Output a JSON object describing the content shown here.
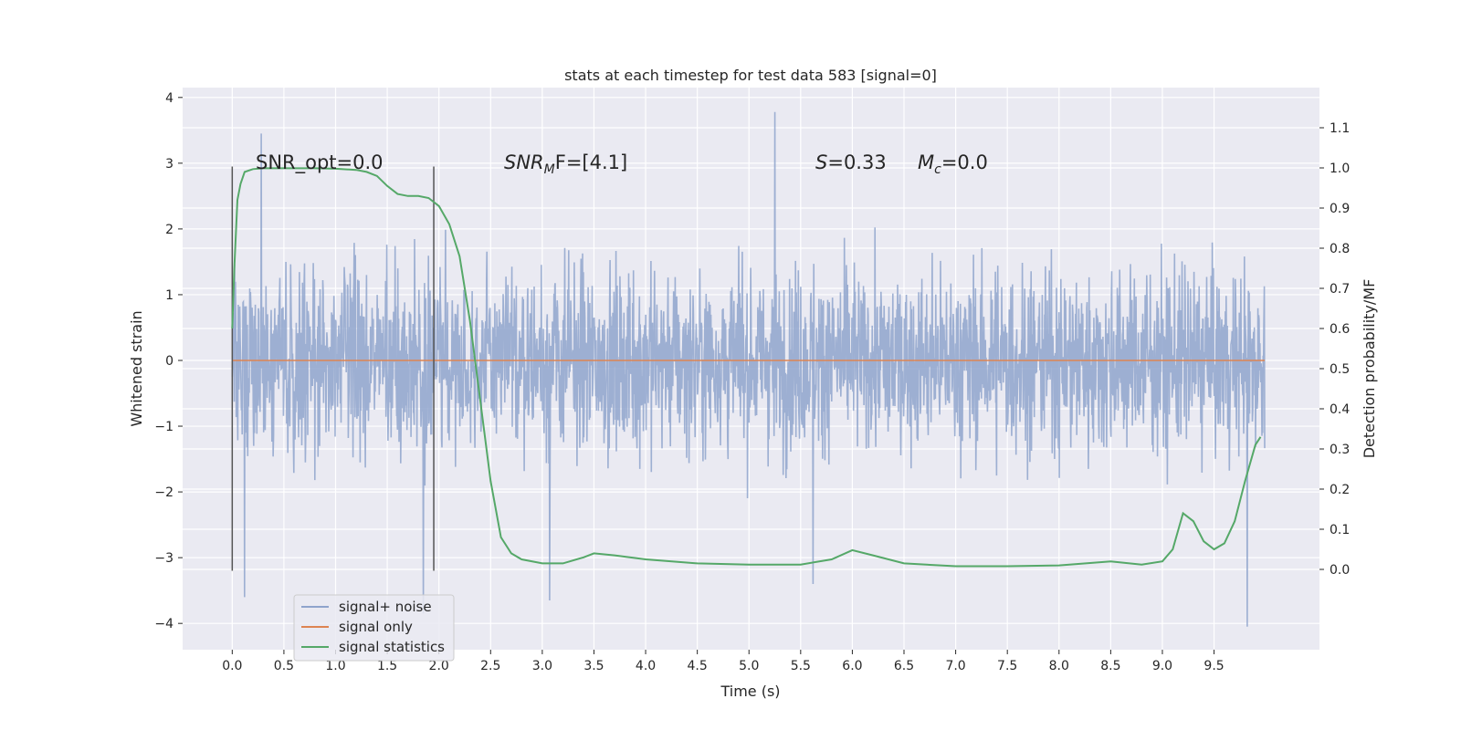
{
  "chart_data": {
    "type": "line",
    "title": "stats at each timestep for test data 583 [signal=0]",
    "xlabel": "Time (s)",
    "ylabel": "Whitened strain",
    "ylabel_right": "Detection probability/MF",
    "xlim": [
      -0.48,
      10.52
    ],
    "ylim": [
      -4.4,
      4.15
    ],
    "ylim_right": [
      -0.2,
      1.2
    ],
    "x_ticks": [
      0.0,
      0.5,
      1.0,
      1.5,
      2.0,
      2.5,
      3.0,
      3.5,
      4.0,
      4.5,
      5.0,
      5.5,
      6.0,
      6.5,
      7.0,
      7.5,
      8.0,
      8.5,
      9.0,
      9.5
    ],
    "x_tick_labels": [
      "0.0",
      "0.5",
      "1.0",
      "1.5",
      "2.0",
      "2.5",
      "3.0",
      "3.5",
      "4.0",
      "4.5",
      "5.0",
      "5.5",
      "6.0",
      "6.5",
      "7.0",
      "7.5",
      "8.0",
      "8.5",
      "9.0",
      "9.5"
    ],
    "y_ticks": [
      -4,
      -3,
      -2,
      -1,
      0,
      1,
      2,
      3,
      4
    ],
    "y_tick_labels": [
      "−4",
      "−3",
      "−2",
      "−1",
      "0",
      "1",
      "2",
      "3",
      "4"
    ],
    "y2_ticks": [
      0.0,
      0.1,
      0.2,
      0.3,
      0.4,
      0.5,
      0.6,
      0.7,
      0.8,
      0.9,
      1.0,
      1.1
    ],
    "y2_tick_labels": [
      "0.0",
      "0.1",
      "0.2",
      "0.3",
      "0.4",
      "0.5",
      "0.6",
      "0.7",
      "0.8",
      "0.9",
      "1.0",
      "1.1"
    ],
    "grid": true,
    "legend_position": "lower-left",
    "colors": {
      "signal_noise": "#8fa4cc",
      "signal_only": "#dd8452",
      "signal_statistics": "#55a868",
      "window_line": "#555555",
      "plot_bg": "#eaeaf2",
      "grid": "#ffffff"
    },
    "series": [
      {
        "name": "signal+ noise",
        "axis": "left",
        "x_range": [
          0.0,
          9.99
        ],
        "peaks": [
          {
            "x": 0.28,
            "y": 3.45
          },
          {
            "x": 0.12,
            "y": -3.6
          },
          {
            "x": 3.07,
            "y": -3.65
          },
          {
            "x": 5.25,
            "y": 3.78
          },
          {
            "x": 9.82,
            "y": -4.05
          },
          {
            "x": 5.62,
            "y": -3.4
          },
          {
            "x": 1.85,
            "y": -3.85
          }
        ],
        "typical_envelope": [
          -2.5,
          2.5
        ]
      },
      {
        "name": "signal only",
        "axis": "left",
        "x": [
          0.0,
          9.99
        ],
        "y": [
          0.0,
          0.0
        ]
      },
      {
        "name": "signal statistics",
        "axis": "right",
        "x": [
          0.0,
          0.02,
          0.05,
          0.08,
          0.12,
          0.2,
          0.3,
          0.5,
          0.8,
          1.0,
          1.2,
          1.3,
          1.4,
          1.5,
          1.6,
          1.7,
          1.8,
          1.9,
          2.0,
          2.1,
          2.2,
          2.3,
          2.4,
          2.5,
          2.6,
          2.7,
          2.8,
          3.0,
          3.2,
          3.4,
          3.5,
          3.7,
          4.0,
          4.5,
          5.0,
          5.5,
          5.8,
          6.0,
          6.2,
          6.5,
          7.0,
          7.5,
          8.0,
          8.5,
          8.8,
          9.0,
          9.1,
          9.2,
          9.3,
          9.4,
          9.5,
          9.6,
          9.7,
          9.8,
          9.9,
          9.95
        ],
        "y": [
          0.6,
          0.75,
          0.92,
          0.96,
          0.99,
          0.997,
          0.999,
          0.999,
          0.999,
          0.998,
          0.995,
          0.99,
          0.98,
          0.955,
          0.935,
          0.93,
          0.93,
          0.925,
          0.905,
          0.86,
          0.78,
          0.62,
          0.42,
          0.22,
          0.08,
          0.04,
          0.025,
          0.015,
          0.015,
          0.03,
          0.04,
          0.035,
          0.025,
          0.015,
          0.012,
          0.012,
          0.025,
          0.048,
          0.035,
          0.015,
          0.008,
          0.008,
          0.01,
          0.02,
          0.012,
          0.02,
          0.05,
          0.14,
          0.12,
          0.07,
          0.05,
          0.065,
          0.12,
          0.22,
          0.31,
          0.33
        ]
      }
    ],
    "vertical_lines": [
      {
        "x": 0.0,
        "y_range": [
          -3.2,
          2.95
        ]
      },
      {
        "x": 1.95,
        "y_range": [
          -3.2,
          2.95
        ]
      }
    ],
    "annotations": {
      "snr_opt": "SNR_opt=0.0",
      "snr_mf_main": "SNR",
      "snr_mf_sub": "M",
      "snr_mf_rest": "F=[4.1]",
      "s_var": "S",
      "s_rest": "=0.33",
      "mc_var": "M",
      "mc_sub": "c",
      "mc_rest": "=0.0"
    }
  }
}
